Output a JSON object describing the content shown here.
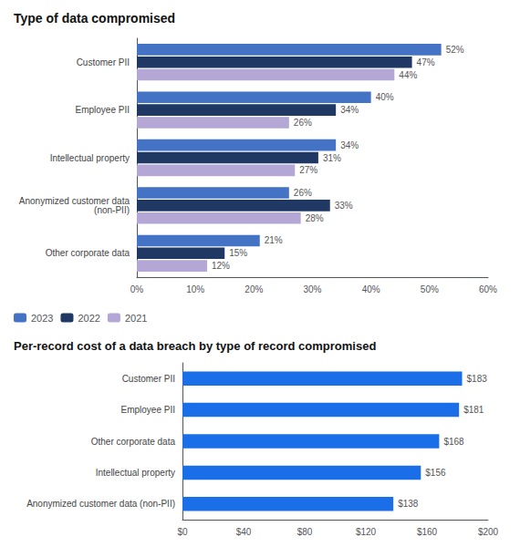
{
  "chart_data": [
    {
      "type": "bar",
      "orientation": "horizontal",
      "title": "Type of data compromised",
      "categories": [
        "Customer PII",
        "Employee PII",
        "Intellectual property",
        "Anonymized customer data\n(non-PII)",
        "Other corporate data"
      ],
      "series": [
        {
          "name": "2023",
          "color": "#4472c4",
          "values": [
            52,
            40,
            34,
            26,
            21
          ],
          "value_labels": [
            "52%",
            "40%",
            "34%",
            "26%",
            "21%"
          ]
        },
        {
          "name": "2022",
          "color": "#1f3864",
          "values": [
            47,
            34,
            31,
            33,
            15
          ],
          "value_labels": [
            "47%",
            "34%",
            "31%",
            "33%",
            "15%"
          ]
        },
        {
          "name": "2021",
          "color": "#b4a7d6",
          "values": [
            44,
            26,
            27,
            28,
            12
          ],
          "value_labels": [
            "44%",
            "26%",
            "27%",
            "28%",
            "12%"
          ]
        }
      ],
      "xlim": [
        0,
        60
      ],
      "xticks": [
        {
          "value": 0,
          "label": "0%"
        },
        {
          "value": 10,
          "label": "10%"
        },
        {
          "value": 20,
          "label": "20%"
        },
        {
          "value": 30,
          "label": "30%"
        },
        {
          "value": 40,
          "label": "40%"
        },
        {
          "value": 50,
          "label": "50%"
        },
        {
          "value": 60,
          "label": "60%"
        }
      ],
      "data_labels": true,
      "legend": "bottom",
      "grid": false
    },
    {
      "type": "bar",
      "orientation": "horizontal",
      "title": "Per-record cost of a data breach by type of record compromised",
      "categories": [
        "Customer PII",
        "Employee PII",
        "Other corporate data",
        "Intellectual property",
        "Anonymized customer data (non-PII)"
      ],
      "values": [
        183,
        181,
        168,
        156,
        138
      ],
      "value_labels": [
        "$183",
        "$181",
        "$168",
        "$156",
        "$138"
      ],
      "color": "#1a6fe8",
      "xlim": [
        0,
        200
      ],
      "xticks": [
        {
          "value": 0,
          "label": "$0"
        },
        {
          "value": 40,
          "label": "$40"
        },
        {
          "value": 80,
          "label": "$80"
        },
        {
          "value": 120,
          "label": "$120"
        },
        {
          "value": 160,
          "label": "$160"
        },
        {
          "value": 200,
          "label": "$200"
        }
      ],
      "data_labels": true,
      "grid": false
    }
  ]
}
